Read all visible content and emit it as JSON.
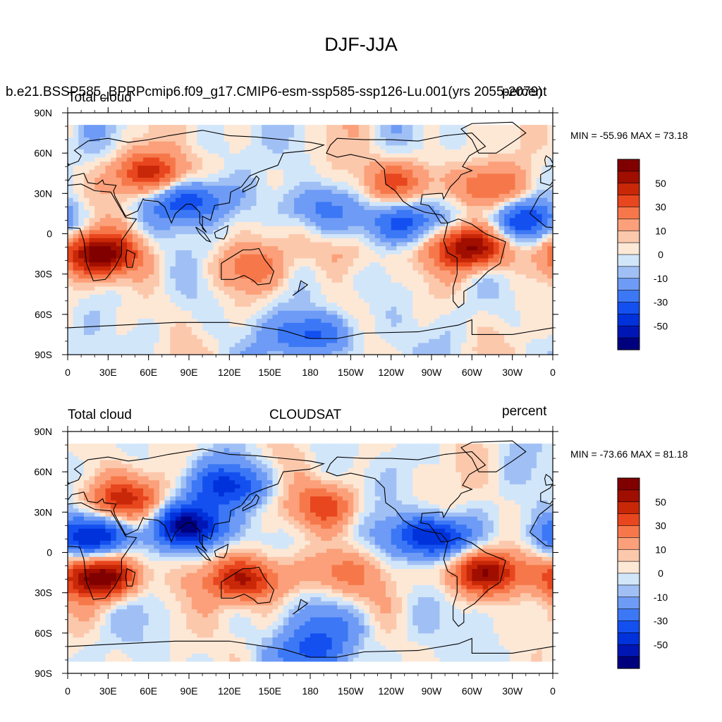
{
  "title": "DJF-JJA",
  "colors": {
    "levels": [
      -60,
      -50,
      -40,
      -30,
      -20,
      -10,
      -5,
      0,
      5,
      10,
      20,
      30,
      40,
      50,
      60
    ],
    "fills": [
      "#00007f",
      "#0016b4",
      "#0032dc",
      "#1450f0",
      "#3c78f5",
      "#6e9bf5",
      "#a0c0f5",
      "#d2e6fa",
      "#fde8d6",
      "#fcc8ac",
      "#fba07a",
      "#f6784a",
      "#e8461e",
      "#c82808",
      "#a00e00",
      "#800000"
    ],
    "land_outline": "#000000"
  },
  "panels": [
    {
      "left_title": "Total cloud",
      "center_title": "",
      "right_title": "",
      "overlay_title": "b.e21.BSSP585_BPRPcmip6.f09_g17.CMIP6-esm-ssp585-ssp126-Lu.001(yrs 2055-2079)",
      "overlay_right": "percent",
      "min_max": "MIN = -55.96 MAX =  73.18"
    },
    {
      "left_title": "Total cloud",
      "center_title": "CLOUDSAT",
      "right_title": "percent",
      "overlay_title": "",
      "overlay_right": "",
      "min_max": "MIN = -73.66 MAX =  81.18"
    }
  ],
  "chart_data": [
    {
      "type": "heatmap",
      "field": "Total cloud (DJF-JJA)",
      "units": "percent",
      "min": -55.96,
      "max": 73.18,
      "xlabel": "",
      "ylabel": "",
      "x_ticks": [
        "0",
        "30E",
        "60E",
        "90E",
        "120E",
        "150E",
        "180",
        "150W",
        "120W",
        "90W",
        "60W",
        "30W",
        "0"
      ],
      "y_ticks": [
        "90N",
        "60N",
        "30N",
        "0",
        "30S",
        "60S",
        "90S"
      ],
      "xlim": [
        0,
        360
      ],
      "ylim": [
        -90,
        90
      ],
      "colorbar_labels": [
        "50",
        "30",
        "10",
        "0",
        "-10",
        "-30",
        "-50"
      ],
      "features": [
        {
          "lon": 60,
          "lat": 45,
          "value": 45
        },
        {
          "lon": 25,
          "lat": -15,
          "value": 65
        },
        {
          "lon": 300,
          "lat": -10,
          "value": 65
        },
        {
          "lon": 315,
          "lat": 35,
          "value": 30
        },
        {
          "lon": 245,
          "lat": 40,
          "value": 30
        },
        {
          "lon": 135,
          "lat": -25,
          "value": 20
        },
        {
          "lon": 200,
          "lat": -12,
          "value": 15
        },
        {
          "lon": 90,
          "lat": 25,
          "value": -40
        },
        {
          "lon": 250,
          "lat": 8,
          "value": -40
        },
        {
          "lon": 340,
          "lat": 10,
          "value": -35
        },
        {
          "lon": 180,
          "lat": 20,
          "value": -20
        },
        {
          "lon": 180,
          "lat": -75,
          "value": -35
        }
      ]
    },
    {
      "type": "heatmap",
      "field": "Total cloud (CLOUDSAT)",
      "units": "percent",
      "min": -73.66,
      "max": 81.18,
      "xlabel": "",
      "ylabel": "",
      "x_ticks": [
        "0",
        "30E",
        "60E",
        "90E",
        "120E",
        "150E",
        "180",
        "150W",
        "120W",
        "90W",
        "60W",
        "30W",
        "0"
      ],
      "y_ticks": [
        "90N",
        "60N",
        "30N",
        "0",
        "30S",
        "60S",
        "90S"
      ],
      "xlim": [
        0,
        360
      ],
      "ylim": [
        -90,
        90
      ],
      "colorbar_labels": [
        "50",
        "30",
        "10",
        "0",
        "-10",
        "-30",
        "-50"
      ],
      "features": [
        {
          "lon": 25,
          "lat": -18,
          "value": 70
        },
        {
          "lon": 310,
          "lat": -15,
          "value": 60
        },
        {
          "lon": 130,
          "lat": -20,
          "value": 50
        },
        {
          "lon": 40,
          "lat": 40,
          "value": 40
        },
        {
          "lon": 90,
          "lat": 20,
          "value": -60
        },
        {
          "lon": 270,
          "lat": 12,
          "value": -55
        },
        {
          "lon": 20,
          "lat": 12,
          "value": -50
        },
        {
          "lon": 190,
          "lat": 35,
          "value": 30
        },
        {
          "lon": 200,
          "lat": -15,
          "value": 25
        },
        {
          "lon": 120,
          "lat": 50,
          "value": -40
        },
        {
          "lon": 200,
          "lat": -55,
          "value": -20
        },
        {
          "lon": 180,
          "lat": -75,
          "value": -30
        }
      ]
    }
  ]
}
